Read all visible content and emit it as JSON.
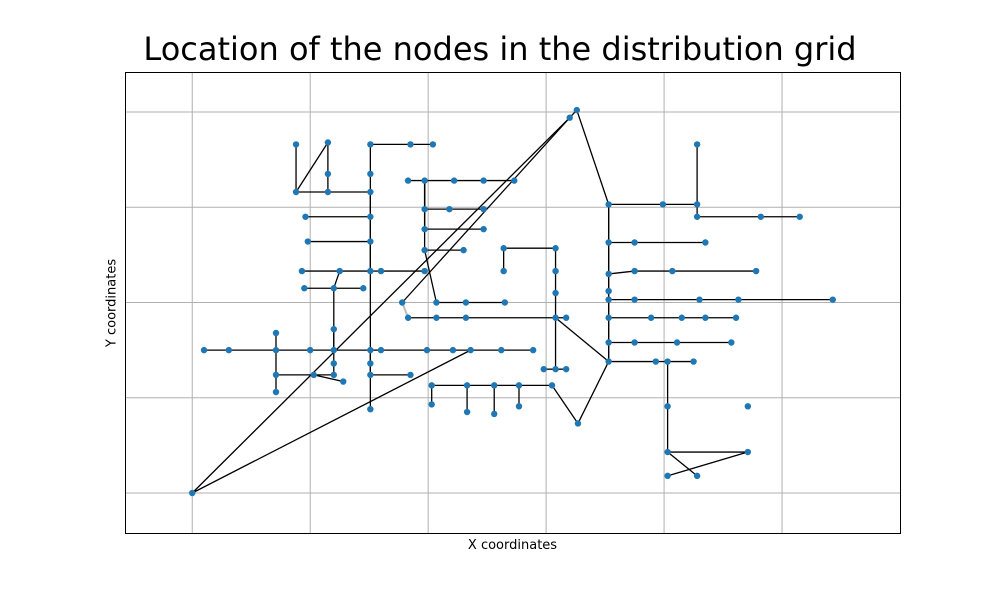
{
  "chart_data": {
    "type": "scatter",
    "title": "Location of the nodes in the distribution grid",
    "xlabel": "X coordinates",
    "ylabel": "Y coordinates",
    "xlim": [
      -0.57,
      6.0
    ],
    "ylim": [
      -0.42,
      4.42
    ],
    "xticks": [
      0,
      1,
      2,
      3,
      4,
      5
    ],
    "yticks": [
      0,
      1,
      2,
      3,
      4
    ],
    "grid": true,
    "marker_color": "#1f77b4",
    "edge_color": "#000000",
    "light_edge_color": "#bbbbbb",
    "nodes": [
      [
        0.0,
        0.0
      ],
      [
        3.26,
        4.02
      ],
      [
        3.2,
        3.94
      ],
      [
        0.88,
        3.66
      ],
      [
        1.15,
        3.68
      ],
      [
        1.51,
        3.66
      ],
      [
        1.85,
        3.66
      ],
      [
        2.04,
        3.66
      ],
      [
        0.88,
        3.16
      ],
      [
        1.15,
        3.16
      ],
      [
        1.51,
        3.16
      ],
      [
        1.15,
        3.35
      ],
      [
        1.51,
        3.35
      ],
      [
        0.96,
        2.9
      ],
      [
        1.51,
        2.9
      ],
      [
        0.98,
        2.64
      ],
      [
        1.51,
        2.64
      ],
      [
        0.93,
        2.33
      ],
      [
        1.25,
        2.33
      ],
      [
        1.51,
        2.33
      ],
      [
        1.6,
        2.33
      ],
      [
        1.97,
        2.33
      ],
      [
        0.95,
        2.15
      ],
      [
        1.2,
        2.15
      ],
      [
        1.45,
        2.15
      ],
      [
        0.1,
        1.5
      ],
      [
        0.31,
        1.5
      ],
      [
        0.71,
        1.5
      ],
      [
        1.0,
        1.5
      ],
      [
        1.2,
        1.5
      ],
      [
        1.51,
        1.5
      ],
      [
        1.6,
        1.5
      ],
      [
        1.99,
        1.5
      ],
      [
        2.21,
        1.5
      ],
      [
        2.36,
        1.5
      ],
      [
        2.62,
        1.5
      ],
      [
        2.89,
        1.5
      ],
      [
        0.71,
        1.68
      ],
      [
        0.71,
        1.24
      ],
      [
        0.71,
        1.06
      ],
      [
        1.03,
        1.24
      ],
      [
        1.28,
        1.17
      ],
      [
        1.2,
        1.24
      ],
      [
        1.2,
        1.36
      ],
      [
        1.2,
        1.72
      ],
      [
        1.51,
        1.24
      ],
      [
        1.51,
        1.36
      ],
      [
        1.51,
        0.88
      ],
      [
        1.85,
        1.24
      ],
      [
        1.83,
        3.28
      ],
      [
        1.97,
        3.28
      ],
      [
        2.22,
        3.28
      ],
      [
        2.47,
        3.28
      ],
      [
        2.73,
        3.28
      ],
      [
        1.97,
        2.98
      ],
      [
        2.18,
        2.98
      ],
      [
        2.47,
        2.98
      ],
      [
        1.97,
        2.77
      ],
      [
        2.47,
        2.77
      ],
      [
        1.97,
        2.55
      ],
      [
        2.3,
        2.55
      ],
      [
        2.07,
        2.0
      ],
      [
        2.32,
        2.0
      ],
      [
        2.65,
        2.0
      ],
      [
        1.78,
        2.0
      ],
      [
        1.83,
        1.84
      ],
      [
        2.07,
        1.84
      ],
      [
        2.32,
        1.84
      ],
      [
        2.64,
        2.57
      ],
      [
        3.08,
        2.57
      ],
      [
        2.64,
        2.33
      ],
      [
        3.08,
        2.33
      ],
      [
        3.08,
        2.1
      ],
      [
        3.08,
        1.84
      ],
      [
        3.17,
        1.84
      ],
      [
        3.08,
        1.3
      ],
      [
        3.17,
        1.3
      ],
      [
        2.98,
        1.3
      ],
      [
        2.03,
        1.13
      ],
      [
        2.33,
        1.13
      ],
      [
        2.56,
        1.13
      ],
      [
        2.77,
        1.13
      ],
      [
        3.05,
        1.13
      ],
      [
        2.03,
        0.93
      ],
      [
        2.33,
        0.85
      ],
      [
        2.56,
        0.83
      ],
      [
        2.77,
        0.91
      ],
      [
        3.27,
        0.73
      ],
      [
        3.53,
        3.03
      ],
      [
        3.53,
        2.63
      ],
      [
        3.53,
        2.3
      ],
      [
        3.53,
        2.12
      ],
      [
        3.53,
        2.03
      ],
      [
        3.53,
        1.84
      ],
      [
        3.53,
        1.58
      ],
      [
        3.53,
        1.38
      ],
      [
        3.99,
        3.03
      ],
      [
        4.28,
        3.03
      ],
      [
        4.28,
        2.9
      ],
      [
        4.28,
        3.66
      ],
      [
        4.82,
        2.9
      ],
      [
        5.15,
        2.9
      ],
      [
        3.75,
        2.63
      ],
      [
        4.35,
        2.63
      ],
      [
        3.75,
        2.33
      ],
      [
        4.07,
        2.33
      ],
      [
        4.78,
        2.33
      ],
      [
        3.75,
        2.03
      ],
      [
        4.3,
        2.03
      ],
      [
        4.63,
        2.03
      ],
      [
        5.43,
        2.03
      ],
      [
        3.89,
        1.84
      ],
      [
        4.15,
        1.84
      ],
      [
        4.35,
        1.84
      ],
      [
        4.61,
        1.84
      ],
      [
        3.75,
        1.58
      ],
      [
        4.11,
        1.58
      ],
      [
        4.57,
        1.58
      ],
      [
        3.93,
        1.38
      ],
      [
        4.03,
        1.38
      ],
      [
        4.25,
        1.38
      ],
      [
        4.03,
        0.91
      ],
      [
        4.03,
        0.43
      ],
      [
        4.28,
        0.18
      ],
      [
        4.03,
        0.18
      ],
      [
        4.71,
        0.43
      ],
      [
        4.71,
        0.91
      ]
    ]
  }
}
